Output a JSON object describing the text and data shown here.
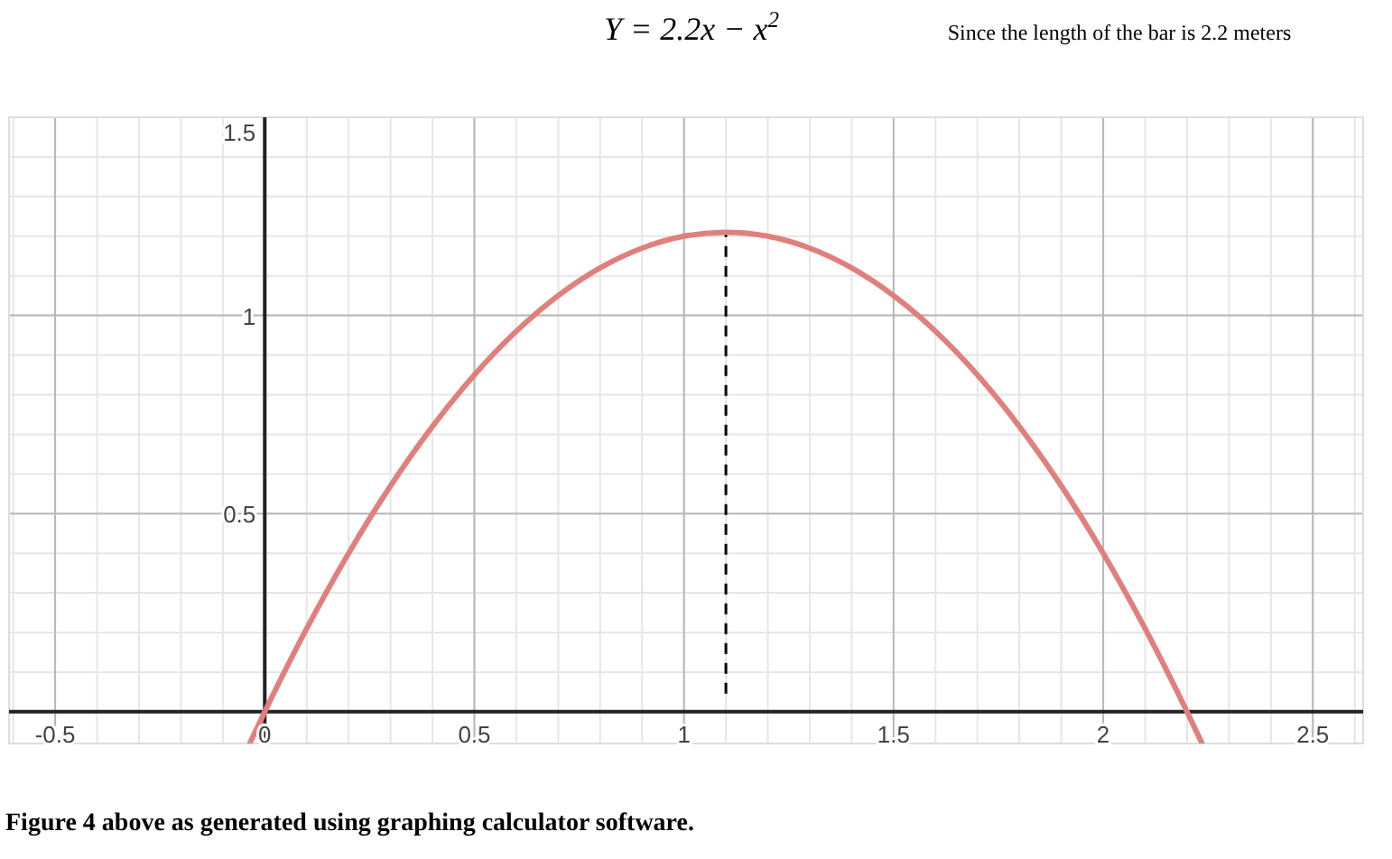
{
  "chart_data": {
    "type": "line",
    "title": "Y = 2.2x − x$^{2}$",
    "subtitle": "Since the length of the bar is 2.2 meters",
    "annotations": [
      "Figure 4 above as generated using graphing calculator software."
    ],
    "x": [
      -0.035,
      0,
      0.1,
      0.2,
      0.3,
      0.4,
      0.5,
      0.6,
      0.7,
      0.8,
      0.9,
      1.0,
      1.1,
      1.2,
      1.3,
      1.4,
      1.5,
      1.6,
      1.7,
      1.8,
      1.9,
      2.0,
      2.1,
      2.2,
      2.235
    ],
    "series": [
      {
        "color": "#e0807c",
        "values": [
          -0.078,
          0,
          0.21,
          0.4,
          0.57,
          0.72,
          0.85,
          0.96,
          1.05,
          1.12,
          1.17,
          1.2,
          1.21,
          1.2,
          1.17,
          1.12,
          1.05,
          0.96,
          0.85,
          0.72,
          0.57,
          0.4,
          0.21,
          0,
          -0.078
        ]
      }
    ],
    "xlim": [
      -0.61,
      2.62
    ],
    "ylim": [
      -0.08,
      1.5
    ],
    "xticks": [
      -0.5,
      0,
      0.5,
      1,
      1.5,
      2,
      2.5
    ],
    "yticks": [
      0.5,
      1,
      1.5
    ],
    "ref_lines": [
      {
        "axis": "x",
        "value": 1.1,
        "color": "#000000",
        "line_style": "dashed"
      }
    ],
    "grid": true,
    "marker": "none",
    "line_style": "solid"
  }
}
